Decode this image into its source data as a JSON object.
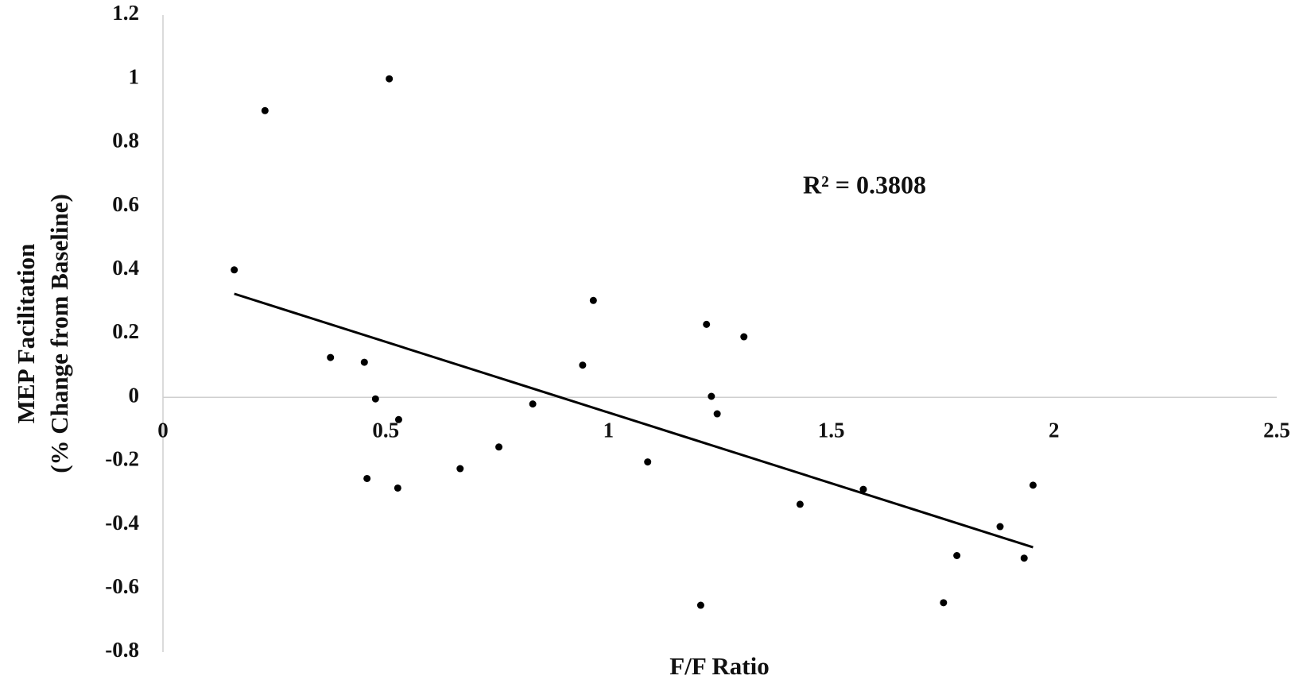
{
  "chart_data": {
    "type": "scatter",
    "x_label": "F/F Ratio",
    "y_label": [
      "MEP Facilitation",
      "(% Change from Baseline)"
    ],
    "annotation": "R² = 0.3808",
    "x": [
      0.229,
      0.508,
      0.16,
      0.376,
      0.452,
      0.477,
      0.529,
      0.458,
      0.527,
      0.667,
      0.754,
      0.83,
      0.942,
      0.966,
      1.088,
      1.22,
      1.231,
      1.244,
      1.304,
      1.207,
      1.43,
      1.572,
      1.752,
      1.782,
      1.879,
      1.933,
      1.953
    ],
    "y": [
      0.9,
      1.0,
      0.4,
      0.125,
      0.11,
      -0.005,
      -0.07,
      -0.255,
      -0.285,
      -0.224,
      -0.156,
      -0.021,
      0.101,
      0.304,
      -0.203,
      0.229,
      0.003,
      -0.052,
      0.19,
      -0.653,
      -0.336,
      -0.289,
      -0.645,
      -0.497,
      -0.406,
      -0.505,
      -0.276
    ],
    "color": "#000000",
    "trendline": {
      "x": [
        0.16,
        1.953
      ],
      "y": [
        0.325,
        -0.471
      ],
      "color": "#000000"
    },
    "xlim": [
      0,
      2.5
    ],
    "ylim": [
      -0.8,
      1.2
    ],
    "xticks": [
      0,
      0.5,
      1,
      1.5,
      2,
      2.5
    ],
    "yticks": [
      -0.8,
      -0.6,
      -0.4,
      -0.2,
      0,
      0.2,
      0.4,
      0.6,
      0.8,
      1,
      1.2
    ],
    "grid": false
  }
}
